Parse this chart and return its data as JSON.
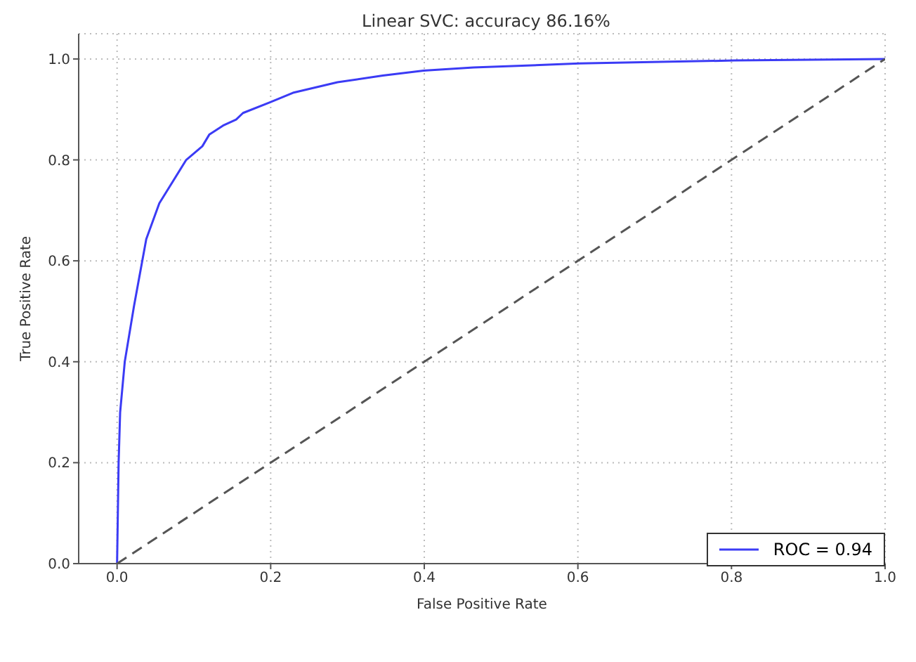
{
  "chart_data": {
    "type": "line",
    "title": "Linear SVC: accuracy 86.16%",
    "xlabel": "False Positive Rate",
    "ylabel": "True Positive Rate",
    "xlim": [
      -0.05,
      1.0
    ],
    "ylim": [
      0,
      1.05
    ],
    "xticks": [
      {
        "value": 0,
        "label": "0.0"
      },
      {
        "value": 0.2,
        "label": "0.2"
      },
      {
        "value": 0.4,
        "label": "0.4"
      },
      {
        "value": 0.6,
        "label": "0.6"
      },
      {
        "value": 0.8,
        "label": "0.8"
      },
      {
        "value": 1,
        "label": "1.0"
      }
    ],
    "yticks": [
      {
        "value": 0,
        "label": "0.0"
      },
      {
        "value": 0.2,
        "label": "0.2"
      },
      {
        "value": 0.4,
        "label": "0.4"
      },
      {
        "value": 0.6,
        "label": "0.6"
      },
      {
        "value": 0.8,
        "label": "0.8"
      },
      {
        "value": 1,
        "label": "1.0"
      }
    ],
    "grid": true,
    "legend": "bottom right",
    "marker": "none",
    "series": [
      {
        "name": "ROC = 0.94",
        "color": "#3b3bf5",
        "line_style": "solid",
        "x": [
          0,
          0.001,
          0.002,
          0.004,
          0.01,
          0.022,
          0.028,
          0.038,
          0.055,
          0.09,
          0.111,
          0.12,
          0.138,
          0.155,
          0.164,
          0.199,
          0.229,
          0.287,
          0.346,
          0.399,
          0.464,
          0.602,
          0.804,
          1.0
        ],
        "values": [
          0,
          0.1,
          0.2,
          0.3,
          0.4,
          0.51,
          0.56,
          0.643,
          0.714,
          0.8,
          0.827,
          0.85,
          0.868,
          0.88,
          0.893,
          0.914,
          0.933,
          0.954,
          0.967,
          0.977,
          0.983,
          0.991,
          0.997,
          1.0
        ]
      },
      {
        "color": "#555555",
        "line_style": "dashed",
        "x": [
          0,
          1
        ],
        "values": [
          0,
          1
        ]
      }
    ]
  }
}
